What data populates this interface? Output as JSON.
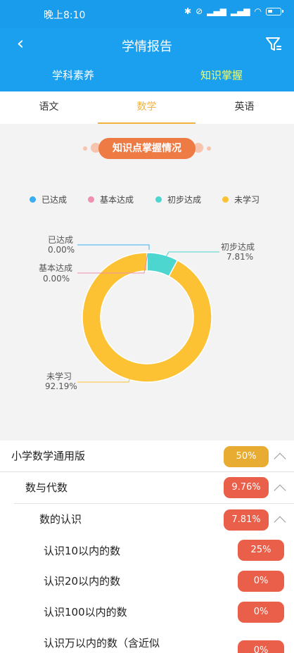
{
  "status": {
    "time": "晚上8:10",
    "battery": "battery-icon"
  },
  "header": {
    "title": "学情报告",
    "subtabs": [
      "学科素养",
      "知识掌握"
    ]
  },
  "subjects": [
    "语文",
    "数学",
    "英语"
  ],
  "section_title": "知识点掌握情况",
  "colors": {
    "achieved": "#3aaef0",
    "basic": "#f08fae",
    "initial": "#4dd6d0",
    "unlearned": "#fcc234",
    "accent": "#1aa0ee"
  },
  "chart_data": {
    "type": "pie",
    "legend": [
      "已达成",
      "基本达成",
      "初步达成",
      "未学习"
    ],
    "slices": [
      {
        "name": "已达成",
        "value": 0.0,
        "label": "0.00%"
      },
      {
        "name": "基本达成",
        "value": 0.0,
        "label": "0.00%"
      },
      {
        "name": "初步达成",
        "value": 7.81,
        "label": "7.81%"
      },
      {
        "name": "未学习",
        "value": 92.19,
        "label": "92.19%"
      }
    ]
  },
  "tree": [
    {
      "label": "小学数学通用版",
      "badge": "50%",
      "color": "#e8ac32",
      "expanded": true
    },
    {
      "label": "数与代数",
      "badge": "9.76%",
      "color": "#ea5f4a",
      "expanded": true
    },
    {
      "label": "数的认识",
      "badge": "7.81%",
      "color": "#ea5f4a",
      "expanded": true
    },
    {
      "label": "认识10以内的数",
      "badge": "25%",
      "color": "#ea5f4a"
    },
    {
      "label": "认识20以内的数",
      "badge": "0%",
      "color": "#ea5f4a"
    },
    {
      "label": "认识100以内的数",
      "badge": "0%",
      "color": "#ea5f4a"
    },
    {
      "label": "认识万以内的数（含近似",
      "badge": "0%",
      "color": "#ea5f4a"
    }
  ]
}
